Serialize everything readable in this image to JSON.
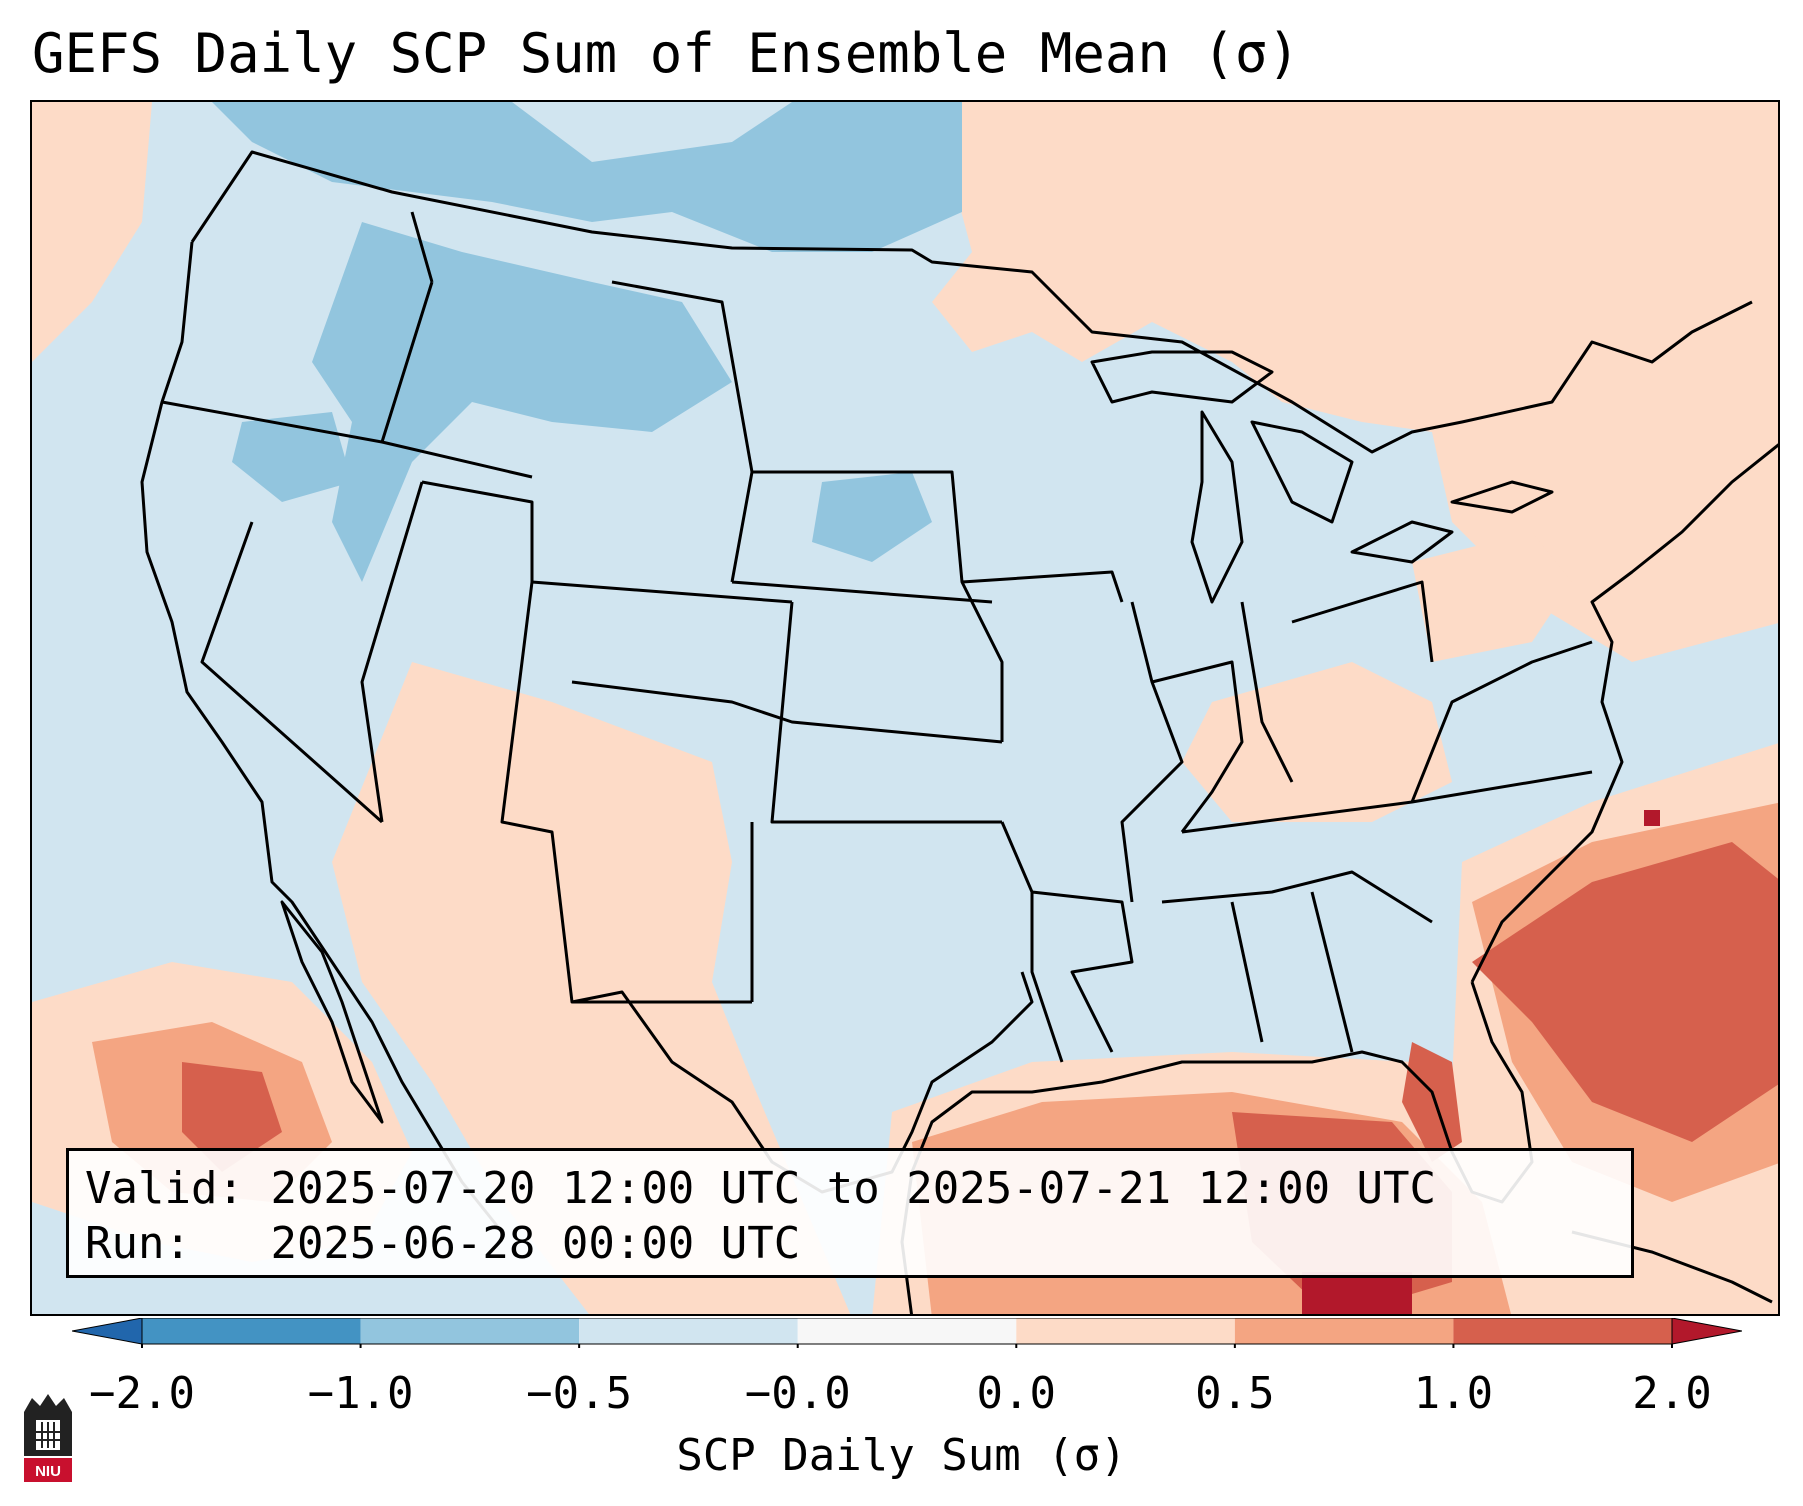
{
  "title": "GEFS Daily SCP Sum of Ensemble Mean (σ)",
  "info": {
    "valid_label": "Valid:",
    "valid_value": "2025-07-20 12:00 UTC to 2025-07-21 12:00 UTC",
    "run_label": "Run:",
    "run_value": "2025-06-28 00:00 UTC"
  },
  "colorbar": {
    "label": "SCP Daily Sum (σ)",
    "ticks": [
      "−2.0",
      "−1.0",
      "−0.5",
      "−0.0",
      "0.0",
      "0.5",
      "1.0",
      "2.0"
    ],
    "bins": [
      {
        "from": -2.0,
        "to": -1.0,
        "color": "#4393c3"
      },
      {
        "from": -1.0,
        "to": -0.5,
        "color": "#92c5de"
      },
      {
        "from": -0.5,
        "to": 0.0,
        "color": "#d1e5f0"
      },
      {
        "from": 0.0,
        "to": 0.0,
        "color": "#f7f7f7"
      },
      {
        "from": 0.0,
        "to": 0.5,
        "color": "#fddbc7"
      },
      {
        "from": 0.5,
        "to": 1.0,
        "color": "#f4a582"
      },
      {
        "from": 1.0,
        "to": 2.0,
        "color": "#d6604d"
      }
    ],
    "under_color": "#2166ac",
    "over_color": "#b2182b"
  },
  "map": {
    "background_color": "#d1e5f0",
    "region": "Contiguous United States, Mexico, Gulf of Mexico, western Atlantic"
  },
  "logo": {
    "text": "NIU",
    "color": "#c8102e"
  }
}
